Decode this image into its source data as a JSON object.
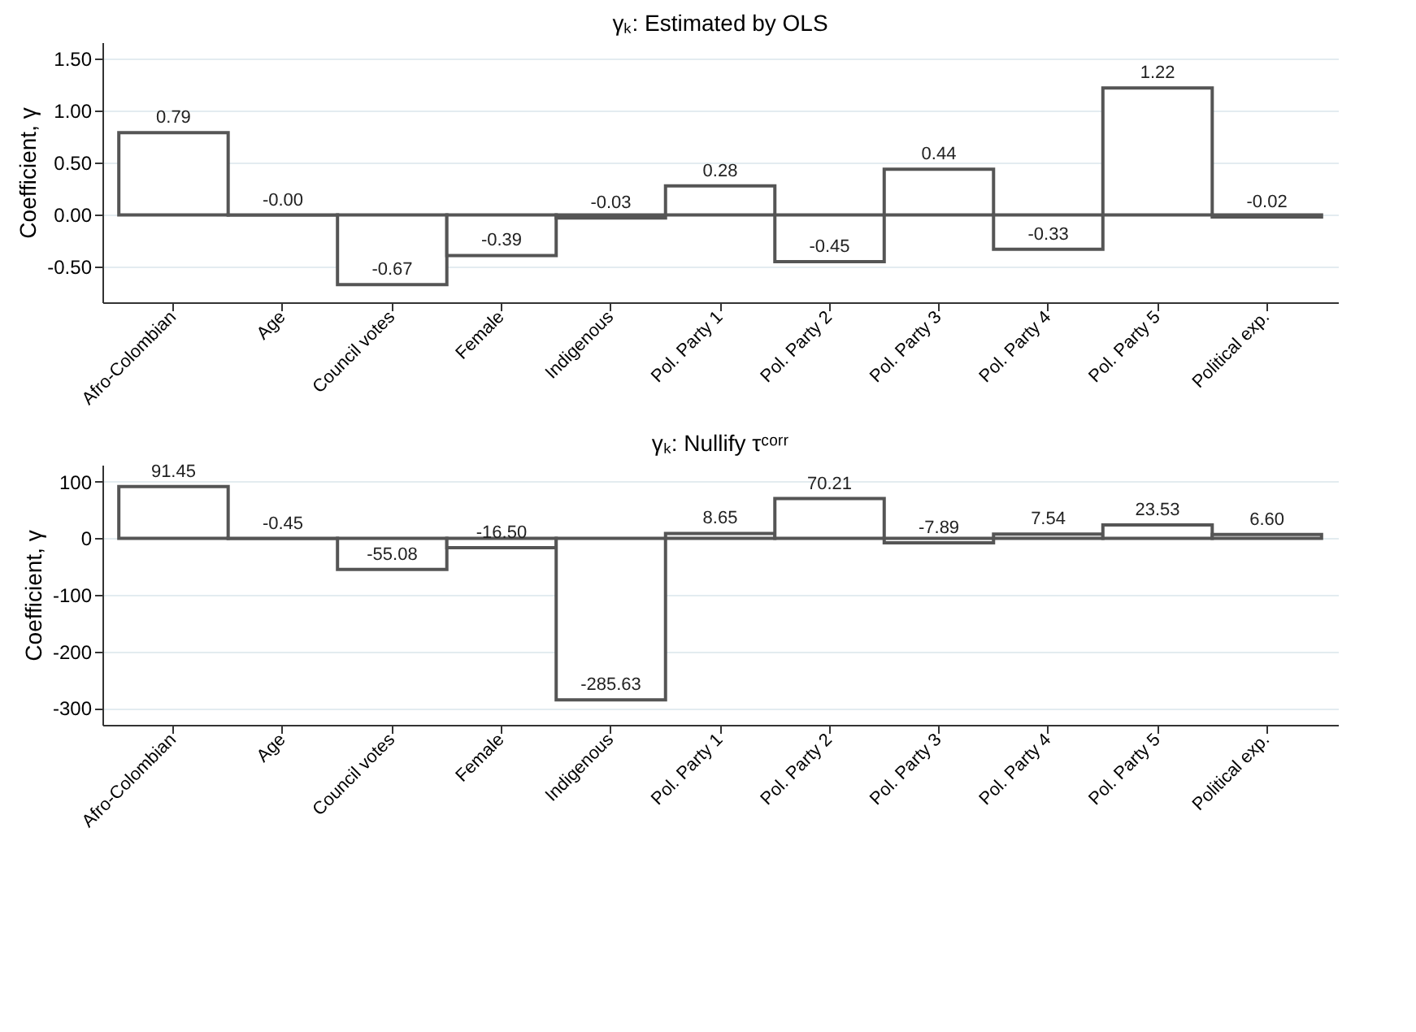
{
  "chart_data": [
    {
      "type": "bar",
      "title": "γₖ: Estimated by OLS",
      "ylabel": "Coefficient, γ",
      "categories": [
        "Afro-Colombian",
        "Age",
        "Council votes",
        "Female",
        "Indigenous",
        "Pol. Party 1",
        "Pol. Party 2",
        "Pol. Party 3",
        "Pol. Party 4",
        "Pol. Party 5",
        "Political exp."
      ],
      "values": [
        0.79,
        -0.003,
        -0.67,
        -0.39,
        -0.03,
        0.28,
        -0.45,
        0.44,
        -0.33,
        1.22,
        -0.02
      ],
      "value_labels": [
        "0.79",
        "-0.00",
        "-0.67",
        "-0.39",
        "-0.03",
        "0.28",
        "-0.45",
        "0.44",
        "-0.33",
        "1.22",
        "-0.02"
      ],
      "color": "#555555",
      "ylim": [
        -0.84,
        1.66
      ],
      "yticks": [
        {
          "value": -0.5,
          "label": "-0.50"
        },
        {
          "value": 0,
          "label": "0.00"
        },
        {
          "value": 0.5,
          "label": "0.50"
        },
        {
          "value": 1,
          "label": "1.00"
        },
        {
          "value": 1.5,
          "label": "1.50"
        }
      ],
      "grid": "y"
    },
    {
      "type": "bar",
      "title": "γₖ: Nullify τᶜᵒʳʳ",
      "ylabel": "Coefficient, γ",
      "categories": [
        "Afro-Colombian",
        "Age",
        "Council votes",
        "Female",
        "Indigenous",
        "Pol. Party 1",
        "Pol. Party 2",
        "Pol. Party 3",
        "Pol. Party 4",
        "Pol. Party 5",
        "Political exp."
      ],
      "values": [
        91.45,
        -0.45,
        -55.08,
        -16.5,
        -285.63,
        8.65,
        70.21,
        -7.89,
        7.54,
        23.53,
        6.6
      ],
      "value_labels": [
        "91.45",
        "-0.45",
        "-55.08",
        "-16.50",
        "-285.63",
        "8.65",
        "70.21",
        "-7.89",
        "7.54",
        "23.53",
        "6.60"
      ],
      "color": "#555555",
      "ylim": [
        -330,
        130
      ],
      "yticks": [
        -300,
        -200,
        -100,
        0,
        100
      ],
      "grid": "y"
    }
  ]
}
